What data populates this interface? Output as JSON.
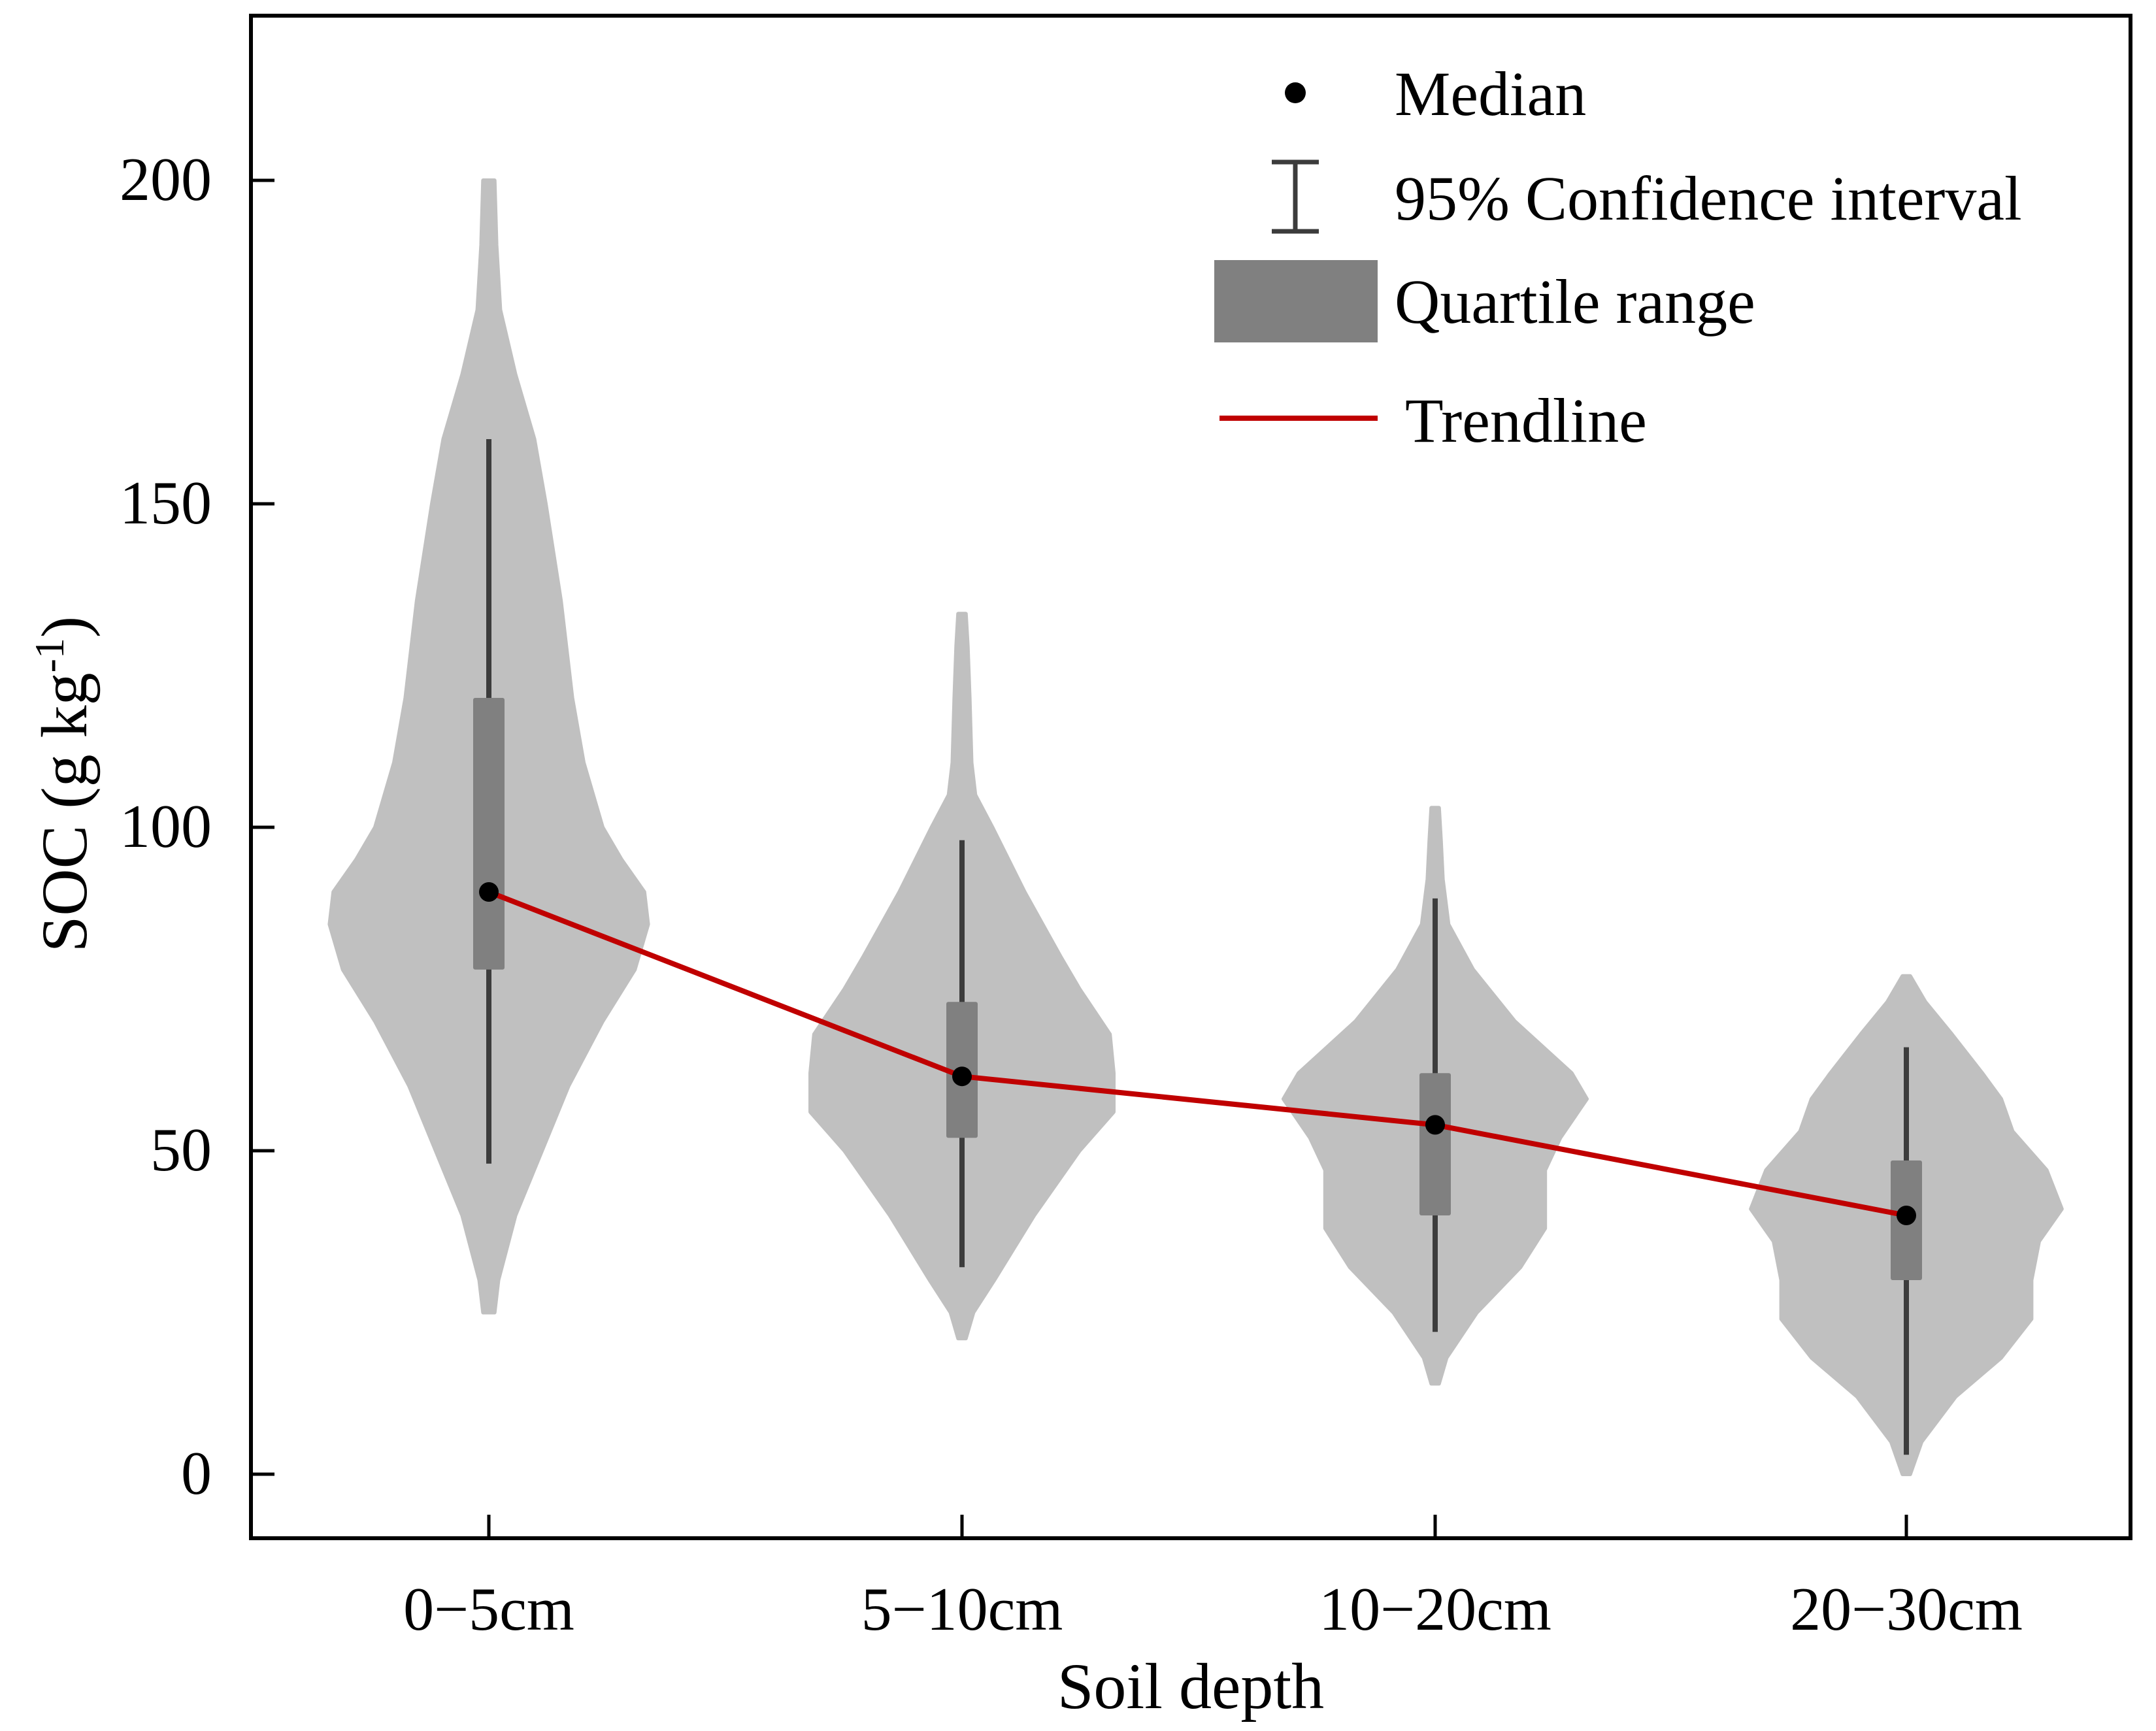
{
  "colors": {
    "violin": "#c0c0c0",
    "quartile": "#808080",
    "whisker": "#3c3c3c",
    "median": "#000000",
    "trendline": "#c00000",
    "axis": "#000000"
  },
  "legend": {
    "median": "Median",
    "ci": "95% Confidence interval",
    "quartile": "Quartile range",
    "trendline": "Trendline"
  },
  "chart_data": {
    "type": "violin",
    "title": "",
    "xlabel": "Soil depth",
    "ylabel": {
      "main": "SOC (g kg",
      "sup": "-1",
      "tail": ")"
    },
    "ylim": [
      -10,
      225
    ],
    "yticks": [
      0,
      50,
      100,
      150,
      200
    ],
    "categories": [
      "0−5cm",
      "5−10cm",
      "10−20cm",
      "20−30cm"
    ],
    "series": [
      {
        "name": "0−5cm",
        "median": 90,
        "q1": 78,
        "q3": 120,
        "ci_low": 48,
        "ci_high": 160,
        "min": 25,
        "max": 200,
        "density": [
          [
            25,
            0.03
          ],
          [
            30,
            0.05
          ],
          [
            40,
            0.14
          ],
          [
            50,
            0.28
          ],
          [
            60,
            0.42
          ],
          [
            70,
            0.6
          ],
          [
            78,
            0.77
          ],
          [
            85,
            0.84
          ],
          [
            90,
            0.82
          ],
          [
            95,
            0.7
          ],
          [
            100,
            0.6
          ],
          [
            110,
            0.5
          ],
          [
            120,
            0.44
          ],
          [
            135,
            0.38
          ],
          [
            150,
            0.3
          ],
          [
            160,
            0.24
          ],
          [
            170,
            0.14
          ],
          [
            180,
            0.06
          ],
          [
            190,
            0.04
          ],
          [
            200,
            0.03
          ]
        ]
      },
      {
        "name": "5−10cm",
        "median": 61.5,
        "q1": 52,
        "q3": 73,
        "ci_low": 32,
        "ci_high": 98,
        "min": 21,
        "max": 133,
        "density": [
          [
            21,
            0.02
          ],
          [
            25,
            0.06
          ],
          [
            30,
            0.17
          ],
          [
            40,
            0.38
          ],
          [
            50,
            0.62
          ],
          [
            56,
            0.8
          ],
          [
            62,
            0.8
          ],
          [
            68,
            0.78
          ],
          [
            75,
            0.62
          ],
          [
            80,
            0.52
          ],
          [
            90,
            0.33
          ],
          [
            100,
            0.16
          ],
          [
            105,
            0.07
          ],
          [
            110,
            0.05
          ],
          [
            120,
            0.04
          ],
          [
            128,
            0.03
          ],
          [
            133,
            0.02
          ]
        ]
      },
      {
        "name": "10−20cm",
        "median": 54,
        "q1": 40,
        "q3": 62,
        "ci_low": 22,
        "ci_high": 89,
        "min": 14,
        "max": 103,
        "density": [
          [
            14,
            0.02
          ],
          [
            18,
            0.06
          ],
          [
            25,
            0.22
          ],
          [
            32,
            0.45
          ],
          [
            38,
            0.58
          ],
          [
            42,
            0.58
          ],
          [
            47,
            0.58
          ],
          [
            52,
            0.66
          ],
          [
            58,
            0.8
          ],
          [
            62,
            0.72
          ],
          [
            70,
            0.42
          ],
          [
            78,
            0.2
          ],
          [
            85,
            0.07
          ],
          [
            92,
            0.04
          ],
          [
            98,
            0.03
          ],
          [
            103,
            0.02
          ]
        ]
      },
      {
        "name": "20−30cm",
        "median": 40,
        "q1": 30,
        "q3": 48.5,
        "ci_low": 3,
        "ci_high": 66,
        "min": 0,
        "max": 77,
        "density": [
          [
            0,
            0.02
          ],
          [
            5,
            0.08
          ],
          [
            12,
            0.26
          ],
          [
            18,
            0.5
          ],
          [
            24,
            0.66
          ],
          [
            30,
            0.66
          ],
          [
            36,
            0.7
          ],
          [
            41,
            0.82
          ],
          [
            47,
            0.74
          ],
          [
            53,
            0.56
          ],
          [
            58,
            0.5
          ],
          [
            62,
            0.4
          ],
          [
            68,
            0.24
          ],
          [
            73,
            0.1
          ],
          [
            77,
            0.02
          ]
        ]
      }
    ],
    "trendline": [
      90,
      61.5,
      54,
      40
    ],
    "legend_position": "top-right"
  }
}
